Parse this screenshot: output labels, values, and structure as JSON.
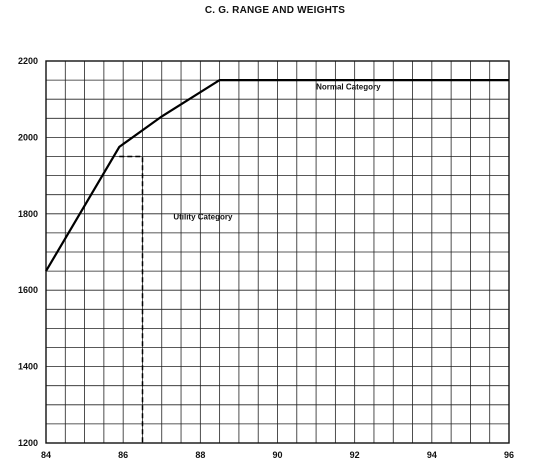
{
  "chart_data": {
    "type": "line",
    "title": "C. G. RANGE AND WEIGHTS",
    "xlabel": "",
    "ylabel": "",
    "xlim": [
      84,
      96
    ],
    "ylim": [
      1200,
      2200
    ],
    "x_ticks": [
      84,
      86,
      88,
      90,
      92,
      94,
      96
    ],
    "y_ticks": [
      1200,
      1400,
      1600,
      1800,
      2000,
      2200
    ],
    "grid": true,
    "series": [
      {
        "name": "Normal Category",
        "points": [
          [
            84,
            1650
          ],
          [
            85.9,
            1975
          ],
          [
            87,
            2055
          ],
          [
            88.5,
            2150
          ],
          [
            96,
            2150
          ]
        ]
      },
      {
        "name": "Utility Category",
        "points": [
          [
            85.9,
            1950
          ],
          [
            86.5,
            1950
          ],
          [
            86.5,
            1200
          ]
        ]
      }
    ],
    "annotations": [
      {
        "text": "Normal Category",
        "x": 91,
        "y": 2125
      },
      {
        "text": "Utility Category",
        "x": 87.3,
        "y": 1785
      }
    ]
  }
}
